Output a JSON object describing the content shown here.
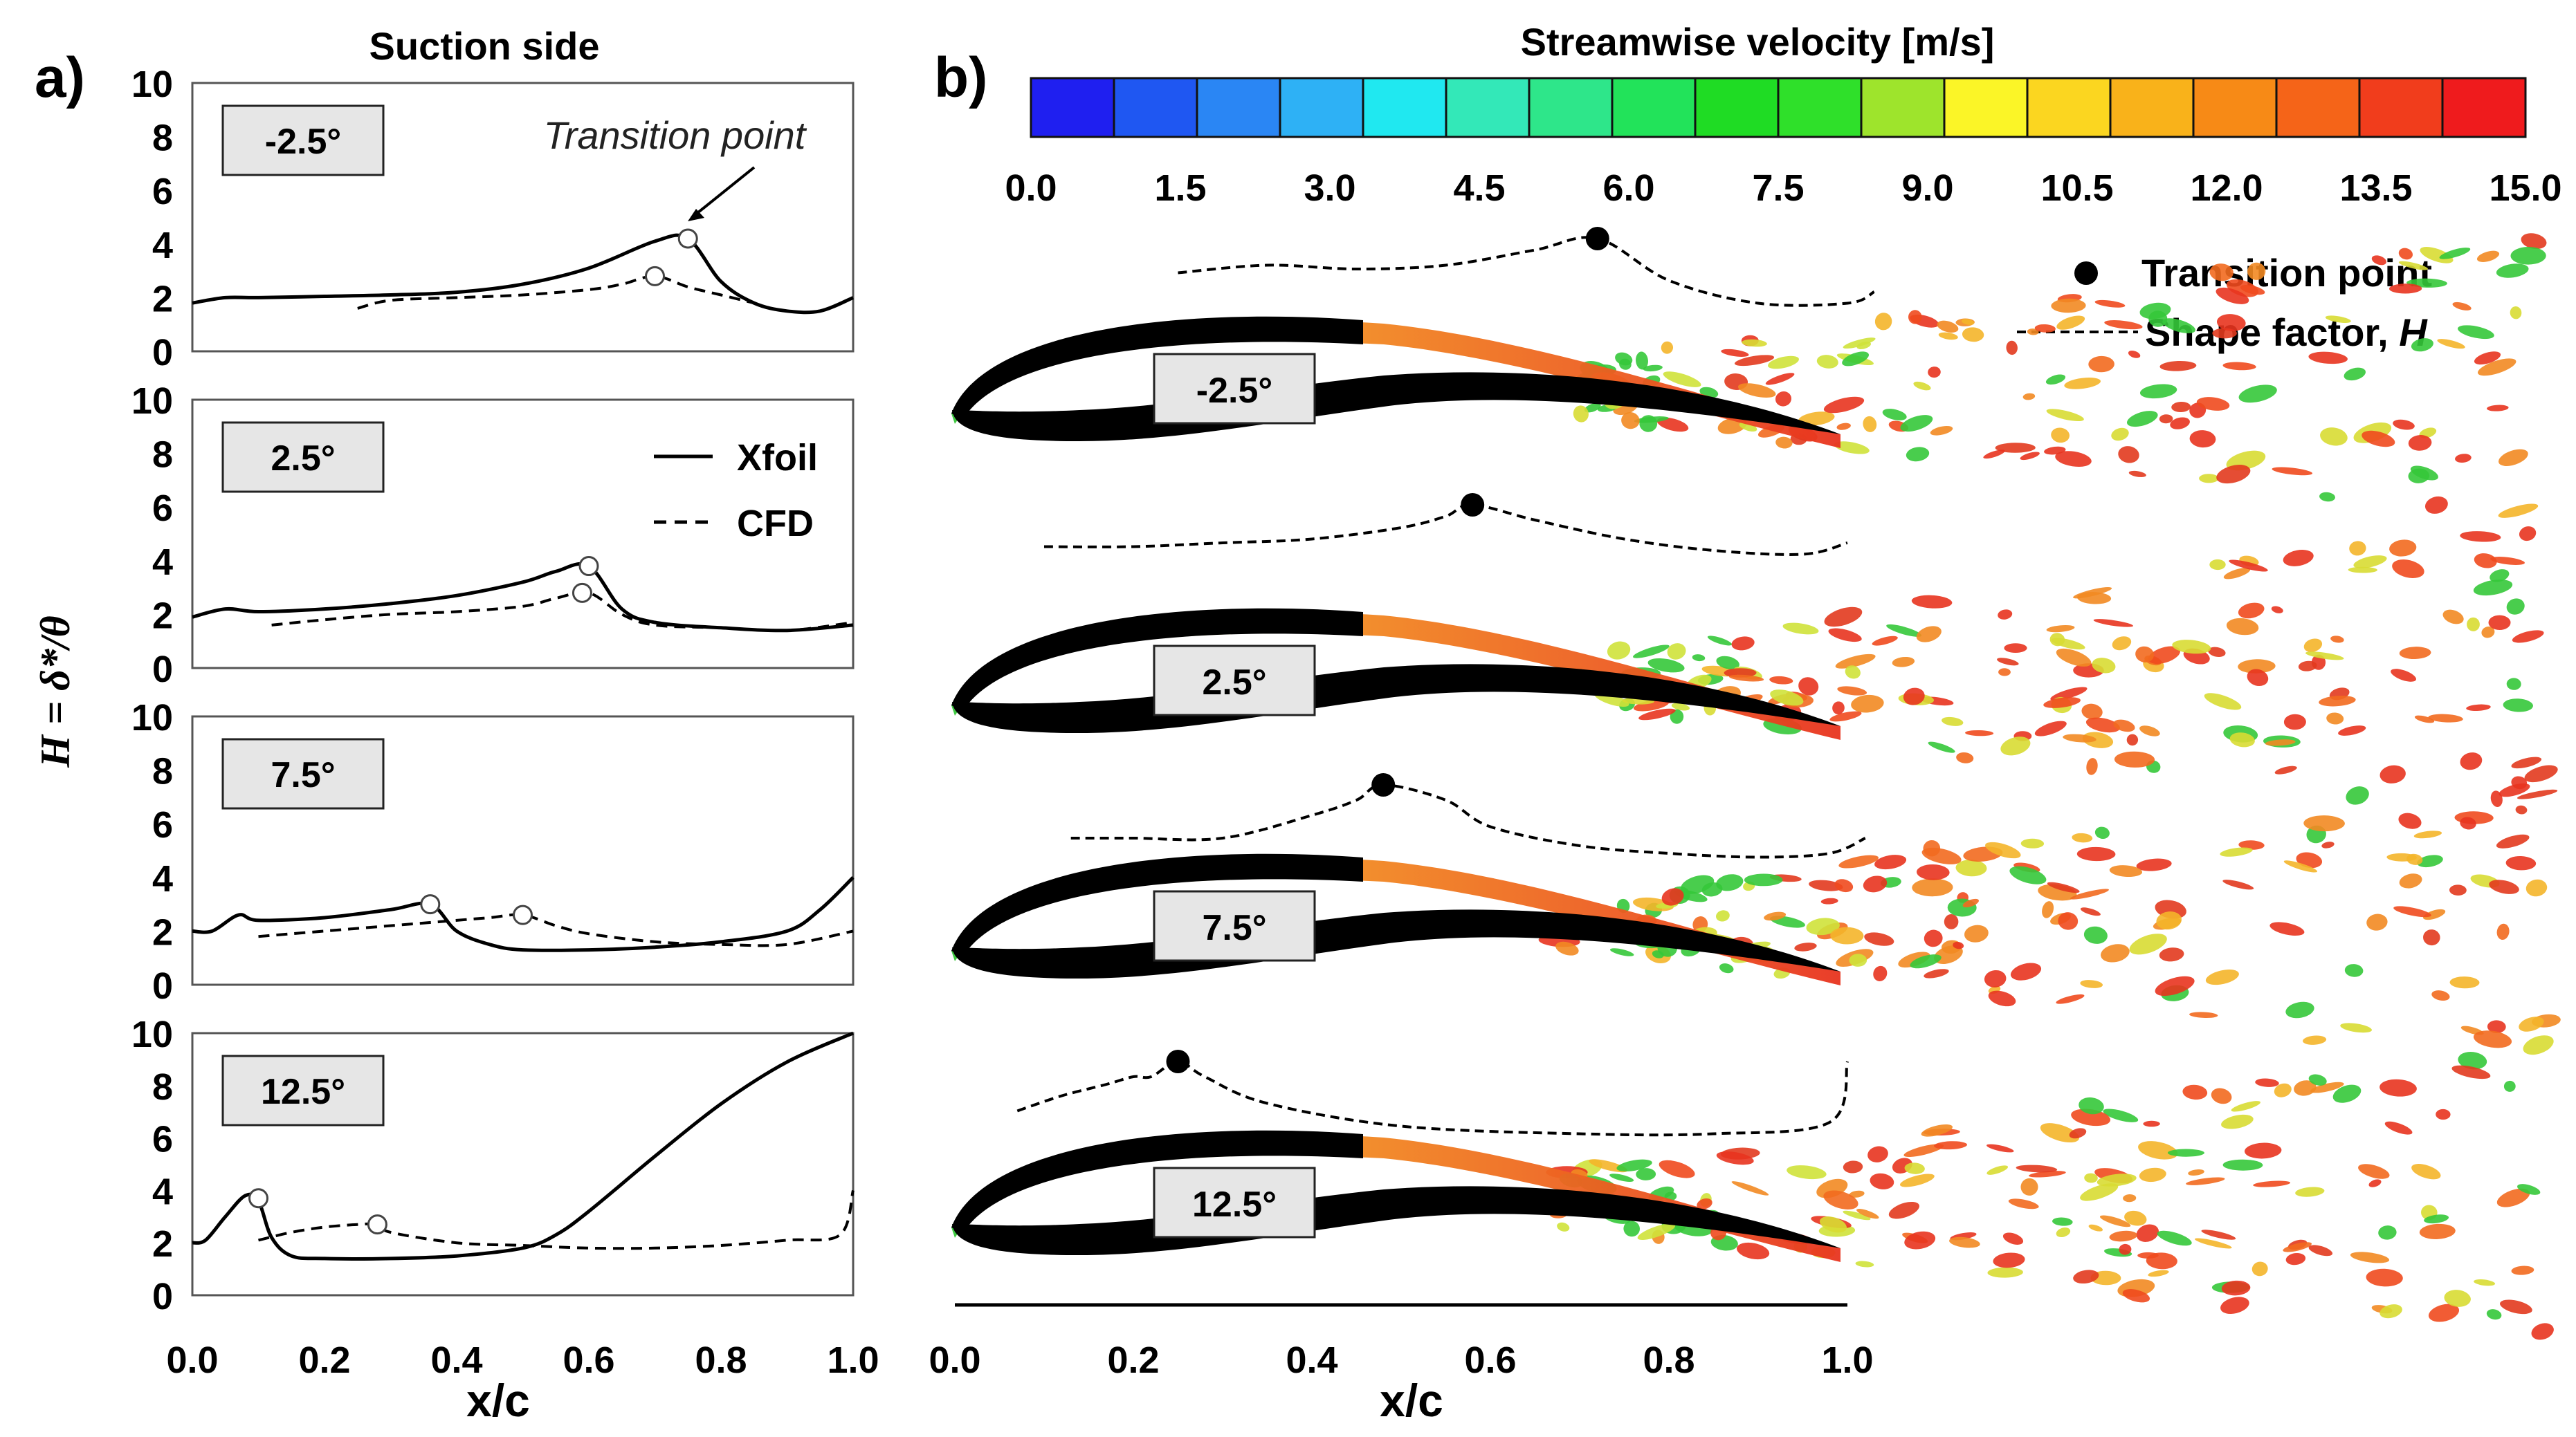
{
  "figure": {
    "panel_a_label": "a)",
    "panel_b_label": "b)",
    "panel_a_title": "Suction side",
    "ylabel": "H = δ*/θ",
    "xlabel": "x/c",
    "transition_annotation": "Transition point",
    "legend_xfoil": "Xfoil",
    "legend_cfd": "CFD",
    "colorbar_title": "Streamwise velocity  [m/s]",
    "legend_b_transition": "Transition point",
    "legend_b_shape": "Shape factor, ",
    "legend_b_shape_italic": "H",
    "angles": [
      "-2.5°",
      "2.5°",
      "7.5°",
      "12.5°"
    ],
    "yticks": [
      "0",
      "2",
      "4",
      "6",
      "8",
      "10"
    ],
    "xticks": [
      "0.0",
      "0.2",
      "0.4",
      "0.6",
      "0.8",
      "1.0"
    ],
    "colorbar_ticks": [
      "0.0",
      "1.5",
      "3.0",
      "4.5",
      "6.0",
      "7.5",
      "9.0",
      "10.5",
      "12.0",
      "13.5",
      "15.0"
    ],
    "colorbar_colors": [
      "#1f1ff0",
      "#1f57f2",
      "#2a86f4",
      "#2eb1f5",
      "#20e8f0",
      "#33e8b8",
      "#2ee68a",
      "#22e35a",
      "#1fdc24",
      "#2fe02a",
      "#9ee42c",
      "#fbf527",
      "#fbd620",
      "#f9b21a",
      "#f78a16",
      "#f56418",
      "#f13d1c",
      "#ef1b1d"
    ],
    "colors": {
      "xfoil": "#000000",
      "cfd": "#000000",
      "wake_red": "#e8341f",
      "wake_orange": "#f28a22",
      "wake_green": "#35c83a",
      "wake_blue": "#2a7fd8",
      "box_fill": "#e6e6e6"
    }
  },
  "chart_data": [
    {
      "type": "line",
      "title": "-2.5°",
      "xlim": [
        0,
        1
      ],
      "ylim": [
        0,
        10
      ],
      "series": [
        {
          "name": "Xfoil",
          "x": [
            0.0,
            0.05,
            0.1,
            0.2,
            0.3,
            0.4,
            0.5,
            0.6,
            0.7,
            0.75,
            0.8,
            0.85,
            0.9,
            0.95,
            1.0
          ],
          "y": [
            1.8,
            2.0,
            2.0,
            2.05,
            2.1,
            2.2,
            2.5,
            3.1,
            4.1,
            4.2,
            2.6,
            1.8,
            1.5,
            1.5,
            2.0
          ]
        },
        {
          "name": "CFD",
          "x": [
            0.25,
            0.3,
            0.4,
            0.5,
            0.6,
            0.65,
            0.7,
            0.75,
            0.8,
            0.85
          ],
          "y": [
            1.6,
            1.9,
            2.0,
            2.1,
            2.3,
            2.5,
            2.8,
            2.4,
            2.1,
            1.8
          ]
        }
      ],
      "transition_points": [
        {
          "series": "Xfoil",
          "x": 0.75,
          "y": 4.2
        },
        {
          "series": "CFD",
          "x": 0.7,
          "y": 2.8
        }
      ]
    },
    {
      "type": "line",
      "title": "2.5°",
      "xlim": [
        0,
        1
      ],
      "ylim": [
        0,
        10
      ],
      "series": [
        {
          "name": "Xfoil",
          "x": [
            0.0,
            0.05,
            0.1,
            0.2,
            0.3,
            0.4,
            0.5,
            0.55,
            0.6,
            0.65,
            0.7,
            0.8,
            0.9,
            1.0
          ],
          "y": [
            1.9,
            2.2,
            2.1,
            2.2,
            2.4,
            2.7,
            3.2,
            3.6,
            3.8,
            2.2,
            1.7,
            1.5,
            1.4,
            1.6
          ]
        },
        {
          "name": "CFD",
          "x": [
            0.12,
            0.2,
            0.3,
            0.4,
            0.5,
            0.55,
            0.6,
            0.65,
            0.7,
            0.8,
            0.9,
            1.0
          ],
          "y": [
            1.6,
            1.8,
            2.0,
            2.1,
            2.3,
            2.6,
            2.8,
            2.0,
            1.6,
            1.5,
            1.4,
            1.7
          ]
        }
      ],
      "transition_points": [
        {
          "series": "Xfoil",
          "x": 0.6,
          "y": 3.8
        },
        {
          "series": "CFD",
          "x": 0.59,
          "y": 2.8
        }
      ]
    },
    {
      "type": "line",
      "title": "7.5°",
      "xlim": [
        0,
        1
      ],
      "ylim": [
        0,
        10
      ],
      "series": [
        {
          "name": "Xfoil",
          "x": [
            0.0,
            0.03,
            0.07,
            0.1,
            0.2,
            0.3,
            0.36,
            0.4,
            0.45,
            0.5,
            0.6,
            0.7,
            0.8,
            0.9,
            0.95,
            1.0
          ],
          "y": [
            2.0,
            2.0,
            2.6,
            2.4,
            2.5,
            2.8,
            3.0,
            2.0,
            1.5,
            1.3,
            1.3,
            1.4,
            1.6,
            2.0,
            2.8,
            4.0
          ]
        },
        {
          "name": "CFD",
          "x": [
            0.1,
            0.2,
            0.3,
            0.4,
            0.45,
            0.5,
            0.55,
            0.6,
            0.7,
            0.8,
            0.9,
            1.0
          ],
          "y": [
            1.8,
            2.0,
            2.2,
            2.4,
            2.5,
            2.6,
            2.2,
            1.9,
            1.6,
            1.5,
            1.5,
            2.0
          ]
        }
      ],
      "transition_points": [
        {
          "series": "Xfoil",
          "x": 0.36,
          "y": 3.0
        },
        {
          "series": "CFD",
          "x": 0.5,
          "y": 2.6
        }
      ]
    },
    {
      "type": "line",
      "title": "12.5°",
      "xlim": [
        0,
        1
      ],
      "ylim": [
        0,
        10
      ],
      "series": [
        {
          "name": "Xfoil",
          "x": [
            0.0,
            0.02,
            0.05,
            0.08,
            0.1,
            0.12,
            0.15,
            0.2,
            0.3,
            0.4,
            0.5,
            0.55,
            0.6,
            0.7,
            0.8,
            0.9,
            1.0
          ],
          "y": [
            2.0,
            2.1,
            3.0,
            3.8,
            3.6,
            2.2,
            1.5,
            1.4,
            1.4,
            1.5,
            1.8,
            2.3,
            3.2,
            5.3,
            7.3,
            8.9,
            10.0
          ]
        },
        {
          "name": "CFD",
          "x": [
            0.1,
            0.15,
            0.2,
            0.25,
            0.28,
            0.3,
            0.4,
            0.5,
            0.6,
            0.7,
            0.8,
            0.9,
            0.98,
            1.0
          ],
          "y": [
            2.1,
            2.4,
            2.6,
            2.7,
            2.7,
            2.4,
            2.0,
            1.9,
            1.8,
            1.8,
            1.9,
            2.1,
            2.3,
            4.0
          ]
        }
      ],
      "transition_points": [
        {
          "series": "Xfoil",
          "x": 0.1,
          "y": 3.7
        },
        {
          "series": "CFD",
          "x": 0.28,
          "y": 2.7
        }
      ]
    },
    {
      "type": "line",
      "title": "",
      "xlim": [
        0,
        1
      ],
      "series": [
        {
          "x": [
            0.25,
            0.35,
            0.45,
            0.55,
            0.65,
            0.72,
            0.8,
            0.9,
            1.0,
            1.03
          ],
          "y": [
            0.45,
            0.35,
            0.4,
            0.35,
            0.15,
            0.0,
            0.55,
            0.85,
            0.85,
            0.7
          ]
        },
        {
          "x": [
            0.1,
            0.2,
            0.3,
            0.4,
            0.5,
            0.55,
            0.58,
            0.65,
            0.75,
            0.85,
            0.95,
            1.0
          ],
          "y": [
            0.55,
            0.55,
            0.5,
            0.45,
            0.3,
            0.15,
            0.0,
            0.2,
            0.45,
            0.6,
            0.65,
            0.5
          ]
        },
        {
          "x": [
            0.13,
            0.2,
            0.3,
            0.4,
            0.45,
            0.48,
            0.55,
            0.6,
            0.7,
            0.8,
            0.9,
            0.98,
            1.02
          ],
          "y": [
            0.7,
            0.7,
            0.7,
            0.4,
            0.2,
            0.0,
            0.2,
            0.55,
            0.8,
            0.9,
            0.95,
            0.9,
            0.7
          ]
        },
        {
          "x": [
            0.07,
            0.12,
            0.17,
            0.2,
            0.22,
            0.25,
            0.28,
            0.35,
            0.5,
            0.7,
            0.85,
            0.98,
            1.0
          ],
          "y": [
            0.65,
            0.45,
            0.3,
            0.2,
            0.2,
            0.0,
            0.2,
            0.55,
            0.85,
            0.95,
            0.95,
            0.8,
            0.0
          ]
        }
      ],
      "transition_points": [
        {
          "x": 0.72
        },
        {
          "x": 0.58
        },
        {
          "x": 0.48
        },
        {
          "x": 0.25
        }
      ]
    }
  ]
}
